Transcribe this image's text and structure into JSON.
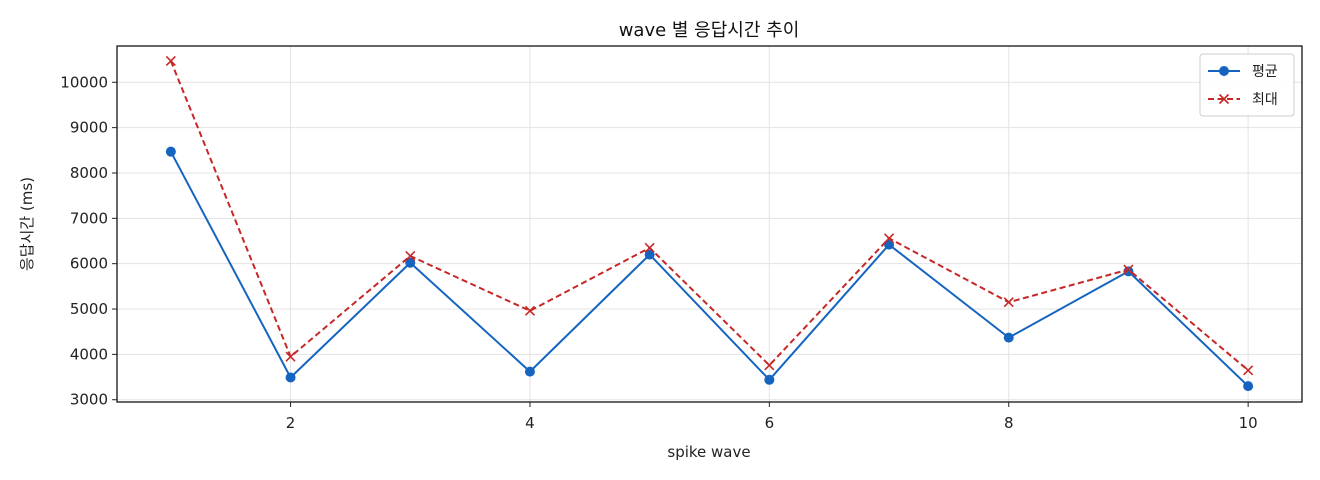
{
  "chart_data": {
    "type": "line",
    "title": "wave 별 응답시간 추이",
    "xlabel": "spike wave",
    "ylabel": "응답시간 (ms)",
    "x": [
      1,
      2,
      3,
      4,
      5,
      6,
      7,
      8,
      9,
      10
    ],
    "xlim": [
      0.55,
      10.45
    ],
    "ylim": [
      2950,
      10800
    ],
    "xticks": [
      2,
      4,
      6,
      8,
      10
    ],
    "yticks": [
      3000,
      4000,
      5000,
      6000,
      7000,
      8000,
      9000,
      10000
    ],
    "grid": true,
    "legend_position": "top-right",
    "series": [
      {
        "name": "평균",
        "values": [
          8470,
          3490,
          6020,
          3620,
          6200,
          3440,
          6420,
          4370,
          5830,
          3300
        ],
        "color": "#1565c0",
        "style": "solid",
        "marker": "circle"
      },
      {
        "name": "최대",
        "values": [
          10470,
          3950,
          6170,
          4960,
          6350,
          3760,
          6560,
          5150,
          5870,
          3650
        ],
        "color": "#c62828",
        "style": "dashed",
        "marker": "x"
      }
    ]
  }
}
